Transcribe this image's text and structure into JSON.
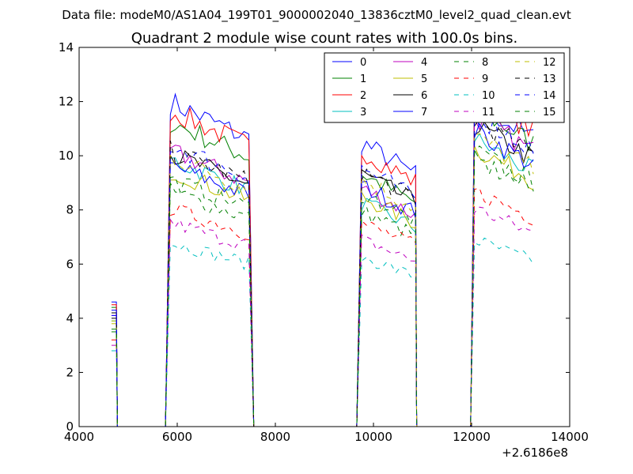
{
  "suptitle": "Data file: modeM0/AS1A04_199T01_9000002040_13836cztM0_level2_quad_clean.evt",
  "chart_data": {
    "type": "line",
    "title": "Quadrant 2 module wise count rates with 100.0s bins.",
    "xlabel": "",
    "ylabel": "",
    "xlim": [
      4000,
      14000
    ],
    "ylim": [
      0,
      14
    ],
    "x_offset_label": "+2.6186e8",
    "x_ticks": [
      "4000",
      "6000",
      "8000",
      "10000",
      "12000",
      "14000"
    ],
    "y_ticks": [
      "0",
      "2",
      "4",
      "6",
      "8",
      "10",
      "12",
      "14"
    ],
    "legend_location": "top-right",
    "segments": [
      {
        "start": 4660,
        "end": 4760,
        "pre_zero": [],
        "post_zero": [
          4780
        ]
      },
      {
        "start": 5860,
        "end": 7460,
        "pre_zero": [
          4780,
          5760
        ],
        "post_zero": [
          7560,
          7660
        ]
      },
      {
        "start": 9760,
        "end": 10860,
        "pre_zero": [
          7660,
          9660
        ],
        "post_zero": [
          10880
        ]
      },
      {
        "start": 12060,
        "end": 13260,
        "pre_zero": [
          10880,
          11980
        ],
        "post_zero": []
      }
    ],
    "series": [
      {
        "name": "0",
        "color": "#0000ff",
        "dash": "solid",
        "levels": [
          4.6,
          11.3,
          9.9,
          11.3
        ]
      },
      {
        "name": "1",
        "color": "#008000",
        "dash": "solid",
        "levels": [
          4.4,
          10.6,
          8.8,
          11.1
        ]
      },
      {
        "name": "2",
        "color": "#ff0000",
        "dash": "solid",
        "levels": [
          4.5,
          11.0,
          9.6,
          11.6
        ]
      },
      {
        "name": "3",
        "color": "#00bfbf",
        "dash": "solid",
        "levels": [
          3.9,
          9.3,
          7.8,
          10.0
        ]
      },
      {
        "name": "4",
        "color": "#bf00bf",
        "dash": "solid",
        "levels": [
          4.1,
          9.6,
          8.3,
          10.8
        ]
      },
      {
        "name": "5",
        "color": "#bfbf00",
        "dash": "solid",
        "levels": [
          3.8,
          8.9,
          8.0,
          9.7
        ]
      },
      {
        "name": "6",
        "color": "#000000",
        "dash": "solid",
        "levels": [
          4.2,
          9.5,
          8.8,
          10.5
        ]
      },
      {
        "name": "7",
        "color": "#0000ff",
        "dash": "solid",
        "levels": [
          4.3,
          9.1,
          8.4,
          10.3
        ]
      },
      {
        "name": "8",
        "color": "#008000",
        "dash": "dashed",
        "levels": [
          3.5,
          8.2,
          7.5,
          9.6
        ]
      },
      {
        "name": "9",
        "color": "#ff0000",
        "dash": "dashed",
        "levels": [
          3.2,
          7.6,
          7.1,
          8.2
        ]
      },
      {
        "name": "10",
        "color": "#00bfbf",
        "dash": "dashed",
        "levels": [
          2.8,
          6.4,
          5.9,
          6.5
        ]
      },
      {
        "name": "11",
        "color": "#bf00bf",
        "dash": "dashed",
        "levels": [
          3.0,
          7.1,
          6.5,
          7.6
        ]
      },
      {
        "name": "12",
        "color": "#bfbf00",
        "dash": "dashed",
        "levels": [
          3.9,
          9.4,
          8.6,
          10.1
        ]
      },
      {
        "name": "13",
        "color": "#000000",
        "dash": "dashed",
        "levels": [
          4.0,
          9.6,
          8.9,
          10.7
        ]
      },
      {
        "name": "14",
        "color": "#0000ff",
        "dash": "dashed",
        "levels": [
          4.1,
          9.8,
          9.0,
          10.9
        ]
      },
      {
        "name": "15",
        "color": "#008000",
        "dash": "dashed",
        "levels": [
          3.6,
          8.6,
          8.1,
          9.3
        ]
      }
    ]
  }
}
